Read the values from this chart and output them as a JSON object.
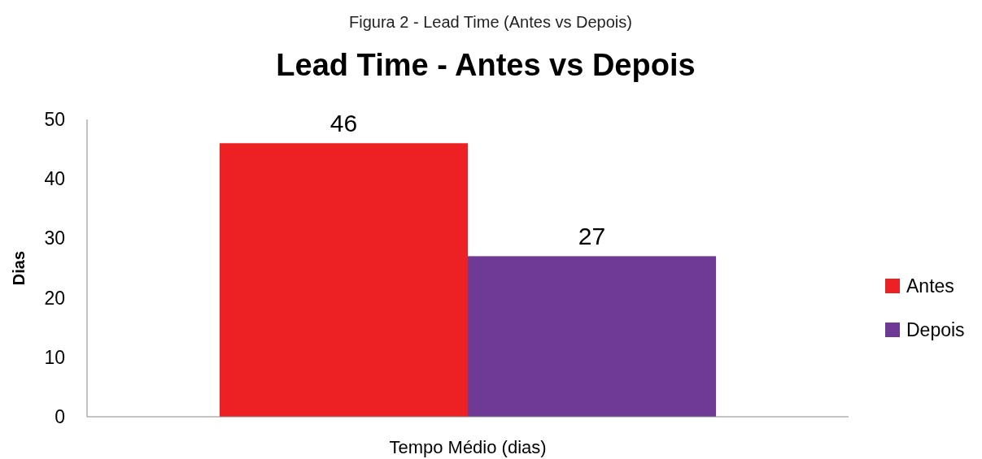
{
  "chart_data": {
    "type": "bar",
    "title": "Lead Time - Antes vs Depois",
    "annotations": [
      "Figura 2 - Lead Time (Antes vs Depois)"
    ],
    "ylabel": "Dias",
    "categories": [
      "Tempo Médio (dias)"
    ],
    "series": [
      {
        "name": "Antes",
        "color": "#ed2024",
        "values": [
          46
        ]
      },
      {
        "name": "Depois",
        "color": "#6f3a96",
        "values": [
          27
        ]
      }
    ],
    "ylim": [
      0,
      50
    ],
    "yticks": [
      0,
      10,
      20,
      30,
      40,
      50
    ],
    "grid": false,
    "legend": "right",
    "data_labels": true
  }
}
